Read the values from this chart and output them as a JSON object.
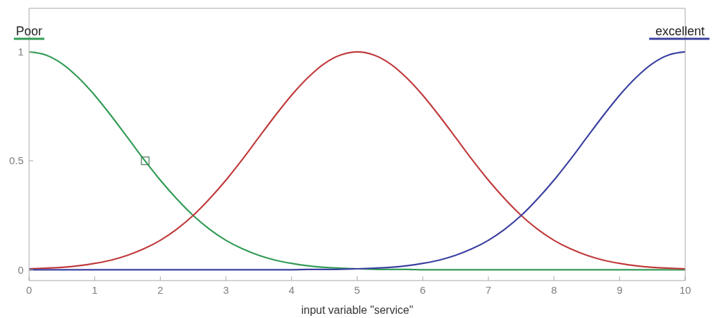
{
  "chart_data": {
    "type": "line",
    "xlabel": "input variable \"service\"",
    "x": [
      0,
      0.25,
      0.5,
      0.75,
      1,
      1.25,
      1.5,
      1.75,
      2,
      2.25,
      2.5,
      2.75,
      3,
      3.25,
      3.5,
      3.75,
      4,
      4.25,
      4.5,
      4.75,
      5,
      5.25,
      5.5,
      5.75,
      6,
      6.25,
      6.5,
      6.75,
      7,
      7.25,
      7.5,
      7.75,
      8,
      8.25,
      8.5,
      8.75,
      9,
      9.25,
      9.5,
      9.75,
      10
    ],
    "xlim": [
      0,
      10
    ],
    "xticks": [
      0,
      1,
      2,
      3,
      4,
      5,
      6,
      7,
      8,
      9,
      10
    ],
    "ylim": [
      -0.05,
      1.2
    ],
    "yticks": [
      0,
      0.5,
      1
    ],
    "series": [
      {
        "name": "Poor",
        "color": "#319b55",
        "values": [
          1,
          0.986,
          0.946,
          0.882,
          0.801,
          0.707,
          0.607,
          0.506,
          0.411,
          0.325,
          0.249,
          0.186,
          0.135,
          0.096,
          0.066,
          0.044,
          0.029,
          0.018,
          0.011,
          0.007,
          0.004,
          0.002,
          0.001,
          0.001,
          0,
          0,
          0,
          0,
          0,
          0,
          0,
          0,
          0,
          0,
          0,
          0,
          0,
          0,
          0,
          0,
          0
        ]
      },
      {
        "color": "#c03a3c",
        "values": [
          0.004,
          0.007,
          0.011,
          0.018,
          0.029,
          0.044,
          0.066,
          0.096,
          0.135,
          0.186,
          0.249,
          0.325,
          0.411,
          0.506,
          0.607,
          0.707,
          0.801,
          0.882,
          0.946,
          0.986,
          1,
          0.986,
          0.946,
          0.882,
          0.801,
          0.707,
          0.607,
          0.506,
          0.411,
          0.325,
          0.249,
          0.186,
          0.135,
          0.096,
          0.066,
          0.044,
          0.029,
          0.018,
          0.011,
          0.007,
          0.004
        ]
      },
      {
        "name": "excellent",
        "color": "#3b40a0",
        "values": [
          0,
          0,
          0,
          0,
          0,
          0,
          0,
          0,
          0,
          0,
          0,
          0,
          0,
          0,
          0,
          0,
          0,
          0.001,
          0.001,
          0.002,
          0.004,
          0.007,
          0.011,
          0.018,
          0.029,
          0.044,
          0.066,
          0.096,
          0.135,
          0.186,
          0.249,
          0.325,
          0.411,
          0.506,
          0.607,
          0.707,
          0.801,
          0.882,
          0.946,
          0.986,
          1
        ]
      },
      {
        "type": "scatter",
        "x": [
          1.77
        ],
        "values": [
          0.5
        ],
        "color": "#4f7f5f",
        "marker": "square"
      }
    ]
  }
}
